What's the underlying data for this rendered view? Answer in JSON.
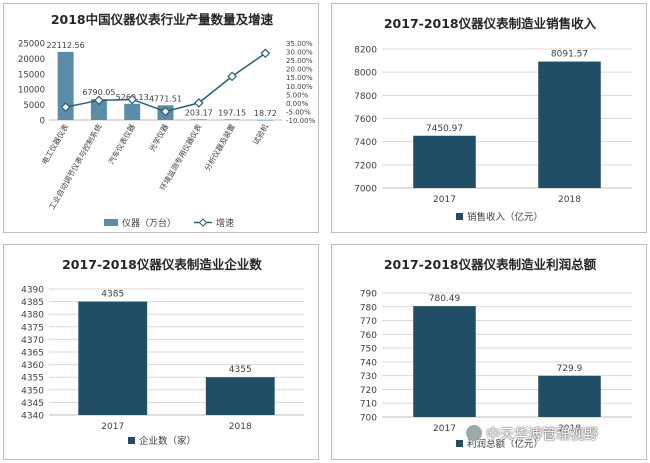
{
  "colors": {
    "bar1": "#5a8ea8",
    "bar_dark": "#1f4e66",
    "line": "#2b5f7a",
    "grid": "#d9d9d9",
    "text": "#404040"
  },
  "chart_data": [
    {
      "id": "c1",
      "type": "bar",
      "title": "2018中国仪器仪表行业产量数量及增速",
      "categories": [
        "电工仪器仪表",
        "工业自动调节仪表与控制系统",
        "汽车仪表仪器",
        "光学仪器",
        "环境监测专用仪器仪表",
        "分析仪器及装置",
        "试验机"
      ],
      "series": [
        {
          "name": "仪器（万台）",
          "kind": "bar",
          "axis": "left",
          "values": [
            22112.56,
            6790.05,
            5260.13,
            4771.51,
            203.17,
            197.15,
            18.72
          ],
          "labels": [
            "22112.56",
            "6790.05",
            "5260.13",
            "4771.51",
            "203.17",
            "197.15",
            "18.72"
          ]
        },
        {
          "name": "增速",
          "kind": "line",
          "axis": "right",
          "values": [
            -2.5,
            1.5,
            2.0,
            -5.0,
            0.0,
            15.5,
            29.0
          ]
        }
      ],
      "ylim": [
        0,
        25000
      ],
      "yticks": [
        "0",
        "5000",
        "10000",
        "15000",
        "20000",
        "25000"
      ],
      "ylim_right": [
        -10,
        35
      ],
      "yticks_right": [
        "-10.00%",
        "-5.00%",
        "0.00%",
        "5.00%",
        "10.00%",
        "15.00%",
        "20.00%",
        "25.00%",
        "30.00%",
        "35.00%"
      ],
      "legend": [
        "仪器（万台）",
        "增速"
      ],
      "legend_position": "bottom"
    },
    {
      "id": "c2",
      "type": "bar",
      "title": "2017-2018仪器仪表制造业销售收入",
      "categories": [
        "2017",
        "2018"
      ],
      "values": [
        7450.97,
        8091.57
      ],
      "labels": [
        "7450.97",
        "8091.57"
      ],
      "ylim": [
        7000,
        8200
      ],
      "yticks": [
        "7000",
        "7200",
        "7400",
        "7600",
        "7800",
        "8000",
        "8200"
      ],
      "legend": [
        "销售收入（亿元）"
      ],
      "legend_position": "bottom"
    },
    {
      "id": "c3",
      "type": "bar",
      "title": "2017-2018仪器仪表制造业企业数",
      "categories": [
        "2017",
        "2018"
      ],
      "values": [
        4385,
        4355
      ],
      "labels": [
        "4385",
        "4355"
      ],
      "ylim": [
        4340,
        4390
      ],
      "yticks": [
        "4340",
        "4345",
        "4350",
        "4355",
        "4360",
        "4365",
        "4370",
        "4375",
        "4380",
        "4385",
        "4390"
      ],
      "legend": [
        "企业数（家）"
      ],
      "legend_position": "bottom"
    },
    {
      "id": "c4",
      "type": "bar",
      "title": "2017-2018仪器仪表制造业利润总额",
      "categories": [
        "2017",
        "2018"
      ],
      "values": [
        780.49,
        729.9
      ],
      "labels": [
        "780.49",
        "729.9"
      ],
      "ylim": [
        700,
        790
      ],
      "yticks": [
        "700",
        "710",
        "720",
        "730",
        "740",
        "750",
        "760",
        "770",
        "780",
        "790"
      ],
      "legend": [
        "利润总额（亿元）"
      ],
      "legend_position": "bottom"
    }
  ],
  "watermark": {
    "text": "中天华溥管理视野"
  }
}
